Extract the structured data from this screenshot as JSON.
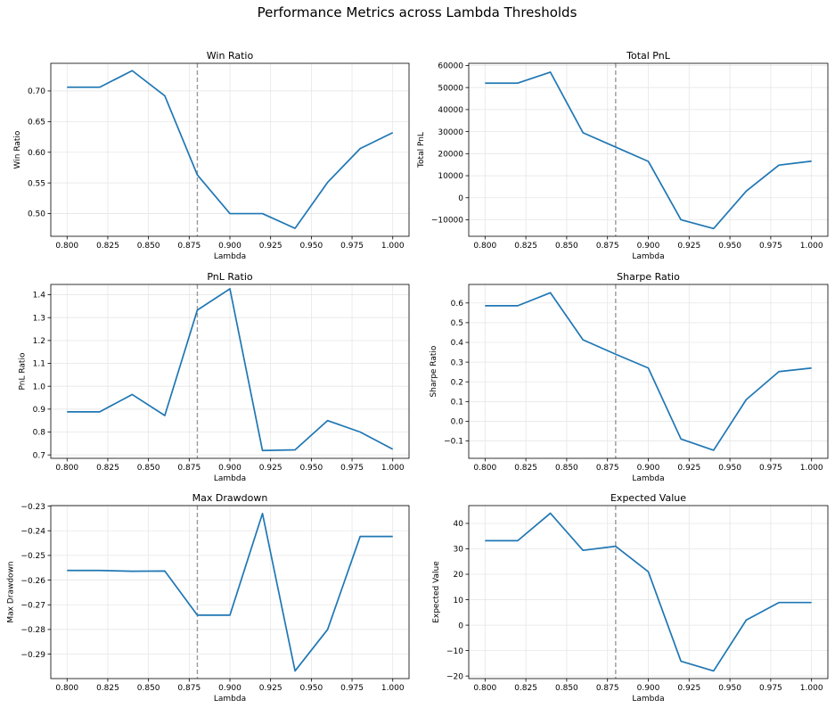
{
  "title": "Performance Metrics across Lambda Thresholds",
  "chart_data": [
    {
      "type": "line",
      "title": "Win Ratio",
      "xlabel": "Lambda",
      "ylabel": "Win Ratio",
      "x": [
        0.8,
        0.82,
        0.84,
        0.86,
        0.88,
        0.9,
        0.92,
        0.94,
        0.96,
        0.98,
        1.0
      ],
      "values": [
        0.706,
        0.706,
        0.733,
        0.692,
        0.563,
        0.5,
        0.5,
        0.476,
        0.551,
        0.606,
        0.632
      ],
      "xlim": [
        0.79,
        1.01
      ],
      "ylim": [
        0.463,
        0.745
      ],
      "xticks": [
        0.8,
        0.825,
        0.85,
        0.875,
        0.9,
        0.925,
        0.95,
        0.975,
        1.0
      ],
      "xtick_labels": [
        "0.800",
        "0.825",
        "0.850",
        "0.875",
        "0.900",
        "0.925",
        "0.950",
        "0.975",
        "1.000"
      ],
      "yticks": [
        0.5,
        0.55,
        0.6,
        0.65,
        0.7
      ],
      "ytick_labels": [
        "0.50",
        "0.55",
        "0.60",
        "0.65",
        "0.70"
      ],
      "vline": 0.88,
      "grid": true,
      "color": "#1f77b4"
    },
    {
      "type": "line",
      "title": "Total PnL",
      "xlabel": "Lambda",
      "ylabel": "Total PnL",
      "x": [
        0.8,
        0.82,
        0.84,
        0.86,
        0.88,
        0.9,
        0.92,
        0.94,
        0.96,
        0.98,
        1.0
      ],
      "values": [
        52000,
        52000,
        57000,
        29500,
        23000,
        16500,
        -10000,
        -14000,
        3000,
        14800,
        16600
      ],
      "xlim": [
        0.79,
        1.01
      ],
      "ylim": [
        -17500,
        61000
      ],
      "xticks": [
        0.8,
        0.825,
        0.85,
        0.875,
        0.9,
        0.925,
        0.95,
        0.975,
        1.0
      ],
      "xtick_labels": [
        "0.800",
        "0.825",
        "0.850",
        "0.875",
        "0.900",
        "0.925",
        "0.950",
        "0.975",
        "1.000"
      ],
      "yticks": [
        -10000,
        0,
        10000,
        20000,
        30000,
        40000,
        50000,
        60000
      ],
      "ytick_labels": [
        "−10000",
        "0",
        "10000",
        "20000",
        "30000",
        "40000",
        "50000",
        "60000"
      ],
      "vline": 0.88,
      "grid": true,
      "color": "#1f77b4"
    },
    {
      "type": "line",
      "title": "PnL Ratio",
      "xlabel": "Lambda",
      "ylabel": "PnL Ratio",
      "x": [
        0.8,
        0.82,
        0.84,
        0.86,
        0.88,
        0.9,
        0.92,
        0.94,
        0.96,
        0.98,
        1.0
      ],
      "values": [
        0.888,
        0.888,
        0.964,
        0.872,
        1.333,
        1.426,
        0.719,
        0.722,
        0.85,
        0.8,
        0.725
      ],
      "xlim": [
        0.79,
        1.01
      ],
      "ylim": [
        0.685,
        1.445
      ],
      "xticks": [
        0.8,
        0.825,
        0.85,
        0.875,
        0.9,
        0.925,
        0.95,
        0.975,
        1.0
      ],
      "xtick_labels": [
        "0.800",
        "0.825",
        "0.850",
        "0.875",
        "0.900",
        "0.925",
        "0.950",
        "0.975",
        "1.000"
      ],
      "yticks": [
        0.7,
        0.8,
        0.9,
        1.0,
        1.1,
        1.2,
        1.3,
        1.4
      ],
      "ytick_labels": [
        "0.7",
        "0.8",
        "0.9",
        "1.0",
        "1.1",
        "1.2",
        "1.3",
        "1.4"
      ],
      "vline": 0.88,
      "grid": true,
      "color": "#1f77b4"
    },
    {
      "type": "line",
      "title": "Sharpe Ratio",
      "xlabel": "Lambda",
      "ylabel": "Sharpe Ratio",
      "x": [
        0.8,
        0.82,
        0.84,
        0.86,
        0.88,
        0.9,
        0.92,
        0.94,
        0.96,
        0.98,
        1.0
      ],
      "values": [
        0.586,
        0.586,
        0.652,
        0.413,
        0.34,
        0.27,
        -0.09,
        -0.147,
        0.11,
        0.252,
        0.27
      ],
      "xlim": [
        0.79,
        1.01
      ],
      "ylim": [
        -0.188,
        0.694
      ],
      "xticks": [
        0.8,
        0.825,
        0.85,
        0.875,
        0.9,
        0.925,
        0.95,
        0.975,
        1.0
      ],
      "xtick_labels": [
        "0.800",
        "0.825",
        "0.850",
        "0.875",
        "0.900",
        "0.925",
        "0.950",
        "0.975",
        "1.000"
      ],
      "yticks": [
        -0.1,
        0.0,
        0.1,
        0.2,
        0.3,
        0.4,
        0.5,
        0.6
      ],
      "ytick_labels": [
        "−0.1",
        "0.0",
        "0.1",
        "0.2",
        "0.3",
        "0.4",
        "0.5",
        "0.6"
      ],
      "vline": 0.88,
      "grid": true,
      "color": "#1f77b4"
    },
    {
      "type": "line",
      "title": "Max Drawdown",
      "xlabel": "Lambda",
      "ylabel": "Max Drawdown",
      "x": [
        0.8,
        0.82,
        0.84,
        0.86,
        0.88,
        0.9,
        0.92,
        0.94,
        0.96,
        0.98,
        1.0
      ],
      "values": [
        -0.2561,
        -0.2561,
        -0.2564,
        -0.2563,
        -0.2742,
        -0.2742,
        -0.233,
        -0.2968,
        -0.28,
        -0.2423,
        -0.2423
      ],
      "xlim": [
        0.79,
        1.01
      ],
      "ylim": [
        -0.2999,
        -0.2298
      ],
      "xticks": [
        0.8,
        0.825,
        0.85,
        0.875,
        0.9,
        0.925,
        0.95,
        0.975,
        1.0
      ],
      "xtick_labels": [
        "0.800",
        "0.825",
        "0.850",
        "0.875",
        "0.900",
        "0.925",
        "0.950",
        "0.975",
        "1.000"
      ],
      "yticks": [
        -0.29,
        -0.28,
        -0.27,
        -0.26,
        -0.25,
        -0.24,
        -0.23
      ],
      "ytick_labels": [
        "−0.29",
        "−0.28",
        "−0.27",
        "−0.26",
        "−0.25",
        "−0.24",
        "−0.23"
      ],
      "vline": 0.88,
      "grid": true,
      "color": "#1f77b4"
    },
    {
      "type": "line",
      "title": "Expected Value",
      "xlabel": "Lambda",
      "ylabel": "Expected Value",
      "x": [
        0.8,
        0.82,
        0.84,
        0.86,
        0.88,
        0.9,
        0.92,
        0.94,
        0.96,
        0.98,
        1.0
      ],
      "values": [
        33.2,
        33.2,
        44.0,
        29.4,
        31.0,
        21.0,
        -14.2,
        -18.0,
        2.0,
        8.9,
        8.9
      ],
      "xlim": [
        0.79,
        1.01
      ],
      "ylim": [
        -21.0,
        47.0
      ],
      "xticks": [
        0.8,
        0.825,
        0.85,
        0.875,
        0.9,
        0.925,
        0.95,
        0.975,
        1.0
      ],
      "xtick_labels": [
        "0.800",
        "0.825",
        "0.850",
        "0.875",
        "0.900",
        "0.925",
        "0.950",
        "0.975",
        "1.000"
      ],
      "yticks": [
        -20,
        -10,
        0,
        10,
        20,
        30,
        40
      ],
      "ytick_labels": [
        "−20",
        "−10",
        "0",
        "10",
        "20",
        "30",
        "40"
      ],
      "vline": 0.88,
      "grid": true,
      "color": "#1f77b4"
    }
  ]
}
